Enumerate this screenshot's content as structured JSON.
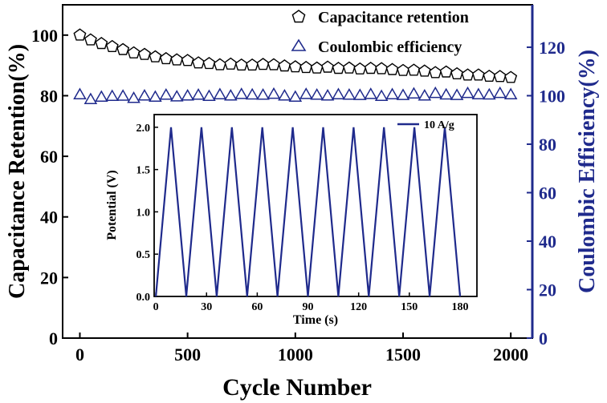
{
  "chart_data": [
    {
      "type": "scatter",
      "title": "",
      "xlabel": "Cycle Number",
      "ylabel_left": "Capacitance Retention(%)",
      "ylabel_right": "Coulombic Efficiency(%)",
      "xlim": [
        -80,
        2100
      ],
      "ylim_left": [
        0,
        110
      ],
      "ylim_right": [
        0,
        137.5
      ],
      "xticks": [
        0,
        500,
        1000,
        1500,
        2000
      ],
      "yticks_left": [
        0,
        20,
        40,
        60,
        80,
        100
      ],
      "yticks_right": [
        0,
        20,
        40,
        60,
        80,
        100,
        120
      ],
      "legend": "top-right",
      "series": [
        {
          "name": "Capacitance retention",
          "marker": "pentagon",
          "color": "#000000",
          "axis": "left",
          "x": [
            0,
            50,
            100,
            150,
            200,
            250,
            300,
            350,
            400,
            450,
            500,
            550,
            600,
            650,
            700,
            750,
            800,
            850,
            900,
            950,
            1000,
            1050,
            1100,
            1150,
            1200,
            1250,
            1300,
            1350,
            1400,
            1450,
            1500,
            1550,
            1600,
            1650,
            1700,
            1750,
            1800,
            1850,
            1900,
            1950,
            2000
          ],
          "y": [
            100.0,
            98.4,
            97.2,
            96.2,
            95.2,
            94.1,
            93.6,
            92.8,
            92.2,
            91.8,
            91.6,
            90.8,
            90.6,
            90.2,
            90.4,
            90.1,
            90.1,
            90.3,
            90.2,
            89.8,
            89.5,
            89.3,
            89.1,
            89.4,
            89.0,
            89.1,
            88.8,
            89.0,
            88.9,
            88.6,
            88.3,
            88.4,
            88.1,
            87.6,
            87.8,
            87.2,
            86.8,
            86.8,
            86.4,
            86.3,
            86.0
          ]
        },
        {
          "name": "Coulombic efficiency",
          "marker": "triangle",
          "color": "#1f2a8c",
          "axis": "right",
          "x": [
            0,
            50,
            100,
            150,
            200,
            250,
            300,
            350,
            400,
            450,
            500,
            550,
            600,
            650,
            700,
            750,
            800,
            850,
            900,
            950,
            1000,
            1050,
            1100,
            1150,
            1200,
            1250,
            1300,
            1350,
            1400,
            1450,
            1500,
            1550,
            1600,
            1650,
            1700,
            1750,
            1800,
            1850,
            1900,
            1950,
            2000
          ],
          "y": [
            100.5,
            98.5,
            99.5,
            99.8,
            99.9,
            99.0,
            100.0,
            99.5,
            100.3,
            99.6,
            100.0,
            100.3,
            99.8,
            100.5,
            100.0,
            100.6,
            100.4,
            100.3,
            100.7,
            100.0,
            99.5,
            100.6,
            100.3,
            100.0,
            100.5,
            100.3,
            100.2,
            100.6,
            99.8,
            100.5,
            100.2,
            100.8,
            100.0,
            101.0,
            100.4,
            100.2,
            101.0,
            100.5,
            100.4,
            101.0,
            100.5
          ]
        }
      ]
    },
    {
      "type": "line",
      "title": "inset",
      "xlabel": "Time (s)",
      "ylabel": "Potential (V)",
      "xlim": [
        -1,
        190
      ],
      "ylim": [
        0,
        2.15
      ],
      "xticks": [
        0,
        30,
        60,
        90,
        120,
        150,
        180
      ],
      "yticks": [
        "0.0",
        "0.5",
        "1.0",
        "1.5",
        "2.0"
      ],
      "legend": "top-right",
      "series": [
        {
          "name": "10 A/g",
          "color": "#1f2a8c",
          "x": [
            0,
            9.0,
            18.0,
            27.0,
            36.0,
            45.0,
            54.0,
            63.0,
            72.0,
            81.0,
            90.0,
            99.0,
            108.0,
            117.0,
            126.0,
            135.0,
            144.0,
            153.0,
            162.0,
            171.0,
            180.0
          ],
          "y": [
            0.0,
            2.0,
            0.0,
            2.0,
            0.0,
            2.0,
            0.0,
            2.0,
            0.0,
            2.0,
            0.0,
            2.0,
            0.0,
            2.0,
            0.0,
            2.0,
            0.0,
            2.0,
            0.0,
            2.0,
            0.0
          ]
        }
      ]
    }
  ],
  "colors": {
    "axis_left": "#000000",
    "axis_right": "#1f2a8c",
    "series_blue": "#1f2a8c"
  }
}
